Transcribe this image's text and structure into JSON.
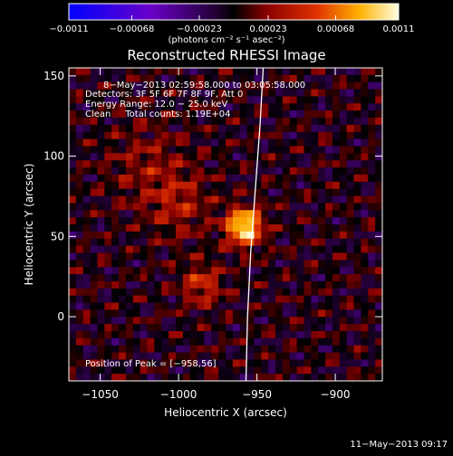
{
  "chart_data": {
    "type": "heatmap",
    "title": "Reconstructed RHESSI Image",
    "xlabel": "Heliocentric X (arcsec)",
    "ylabel": "Heliocentric Y (arcsec)",
    "xlim": [
      -1070,
      -870
    ],
    "ylim": [
      -40,
      155
    ],
    "xticks": [
      {
        "value": -1050,
        "label": "−1050"
      },
      {
        "value": -1000,
        "label": "−1000"
      },
      {
        "value": -950,
        "label": "−950"
      },
      {
        "value": -900,
        "label": "−900"
      }
    ],
    "yticks": [
      {
        "value": 0,
        "label": "0"
      },
      {
        "value": 50,
        "label": "50"
      },
      {
        "value": 100,
        "label": "100"
      },
      {
        "value": 150,
        "label": "150"
      }
    ],
    "colorbar": {
      "range": [
        -0.0011,
        0.0011
      ],
      "ticks": [
        {
          "value": -0.0011,
          "label": "−0.0011"
        },
        {
          "value": -0.00068,
          "label": "−0.00068"
        },
        {
          "value": -0.00023,
          "label": "−0.00023"
        },
        {
          "value": 0.00023,
          "label": "0.00023"
        },
        {
          "value": 0.00068,
          "label": "0.00068"
        },
        {
          "value": 0.0011,
          "label": "0.0011"
        }
      ],
      "units": "(photons cm⁻² s⁻¹ asec⁻²)"
    },
    "annotations": {
      "time_range": "8−May−2013 02:59:58.000 to 03:05:58.000",
      "detectors": "Detectors: 3F 5F 6F 7F 8F 9F, Att 0",
      "energy_range": "Energy Range: 12.0 − 25.0 keV",
      "clean_counts": "Clean     Total counts: 1.19E+04",
      "peak_position": "Position of Peak = [−958,56]"
    },
    "peak": {
      "x": -958,
      "y": 56
    },
    "sources": [
      {
        "x": -958,
        "y": 56,
        "amp": 0.0011,
        "sigma": 8
      },
      {
        "x": -985,
        "y": 20,
        "amp": 0.00045,
        "sigma": 9
      },
      {
        "x": -1000,
        "y": 70,
        "amp": 0.0003,
        "sigma": 14
      },
      {
        "x": -1020,
        "y": 95,
        "amp": 0.00022,
        "sigma": 18
      }
    ],
    "limb": [
      [
        -946,
        155
      ],
      [
        -948,
        120
      ],
      [
        -951,
        80
      ],
      [
        -954,
        40
      ],
      [
        -956,
        0
      ],
      [
        -957,
        -40
      ]
    ],
    "timestamp": "11−May−2013 09:17"
  }
}
